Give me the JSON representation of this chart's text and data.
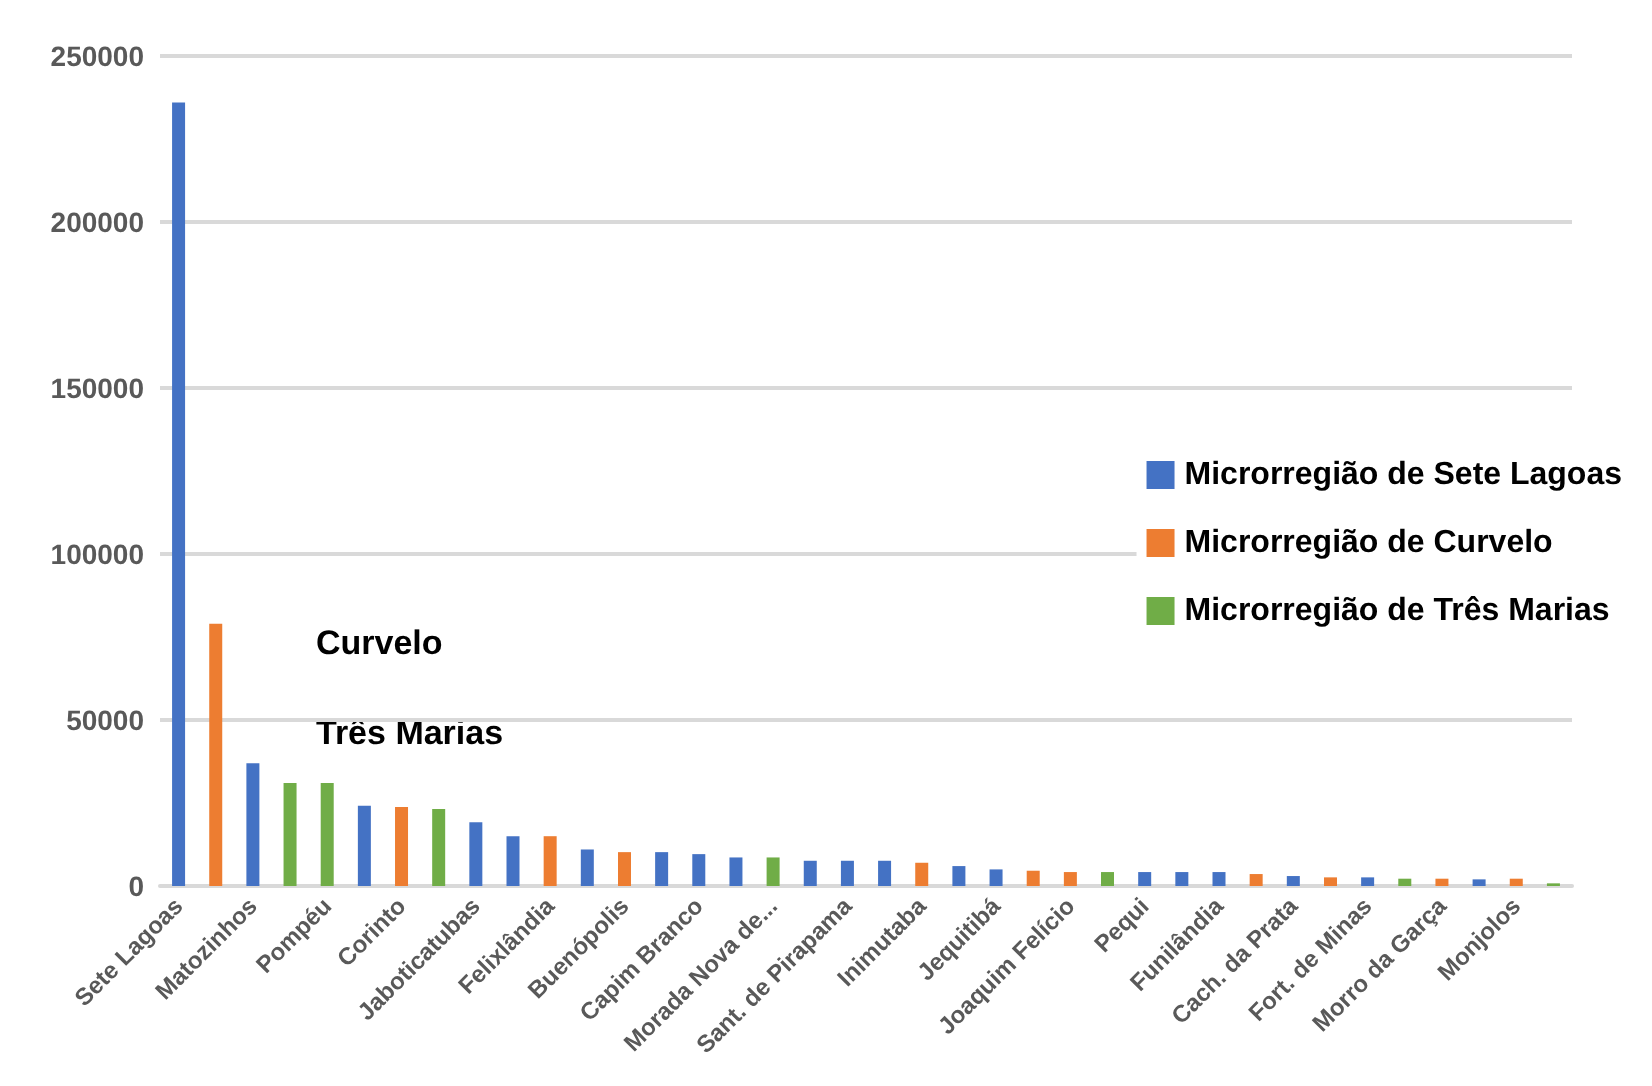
{
  "chart_data": {
    "type": "bar",
    "stacked": true,
    "categories": [
      "Sete Lagoas",
      null,
      "Matozinhos",
      null,
      "Pompéu",
      null,
      "Corinto",
      null,
      "Jaboticatubas",
      null,
      "Felixlândia",
      null,
      "Buenópolis",
      null,
      "Capim Branco",
      null,
      "Morada Nova de...",
      null,
      "Sant. de Pirapama",
      null,
      "Inimutaba",
      null,
      "Jequitibá",
      null,
      "Joaquim Felício",
      null,
      "Pequi",
      null,
      "Funilândia",
      null,
      "Cach. da Prata",
      null,
      "Fort. de Minas",
      null,
      "Morro da Garça",
      null,
      "Monjolos",
      null
    ],
    "series": [
      {
        "name": "Microrregião de Sete Lagoas",
        "color": "#4472c4",
        "values": [
          236000,
          null,
          37000,
          null,
          null,
          24200,
          null,
          null,
          19200,
          15000,
          null,
          11000,
          null,
          10200,
          9600,
          8600,
          null,
          7600,
          7600,
          7600,
          null,
          6000,
          5000,
          null,
          null,
          null,
          4200,
          4200,
          4200,
          null,
          3000,
          null,
          2600,
          null,
          null,
          2000,
          null,
          null
        ]
      },
      {
        "name": "Microrregião de Curvelo",
        "color": "#ed7d31",
        "values": [
          null,
          79000,
          null,
          null,
          null,
          null,
          23800,
          null,
          null,
          null,
          15000,
          null,
          10200,
          null,
          null,
          null,
          null,
          null,
          null,
          null,
          7000,
          null,
          null,
          4600,
          4200,
          null,
          null,
          null,
          null,
          3600,
          null,
          2600,
          null,
          null,
          2200,
          null,
          2200,
          null
        ]
      },
      {
        "name": "Microrregião de Três Marias",
        "color": "#70ad47",
        "values": [
          null,
          null,
          null,
          31000,
          31000,
          null,
          null,
          23200,
          null,
          null,
          null,
          null,
          null,
          null,
          null,
          null,
          8600,
          null,
          null,
          null,
          null,
          null,
          null,
          null,
          null,
          4200,
          null,
          null,
          null,
          null,
          null,
          null,
          null,
          2200,
          null,
          null,
          null,
          800
        ]
      }
    ],
    "ylim": [
      0,
      250000
    ],
    "yticks": [
      0,
      50000,
      100000,
      150000,
      200000,
      250000
    ],
    "grid": "y",
    "legend": "right",
    "annotations": [
      "Curvelo",
      "Três Marias"
    ]
  }
}
